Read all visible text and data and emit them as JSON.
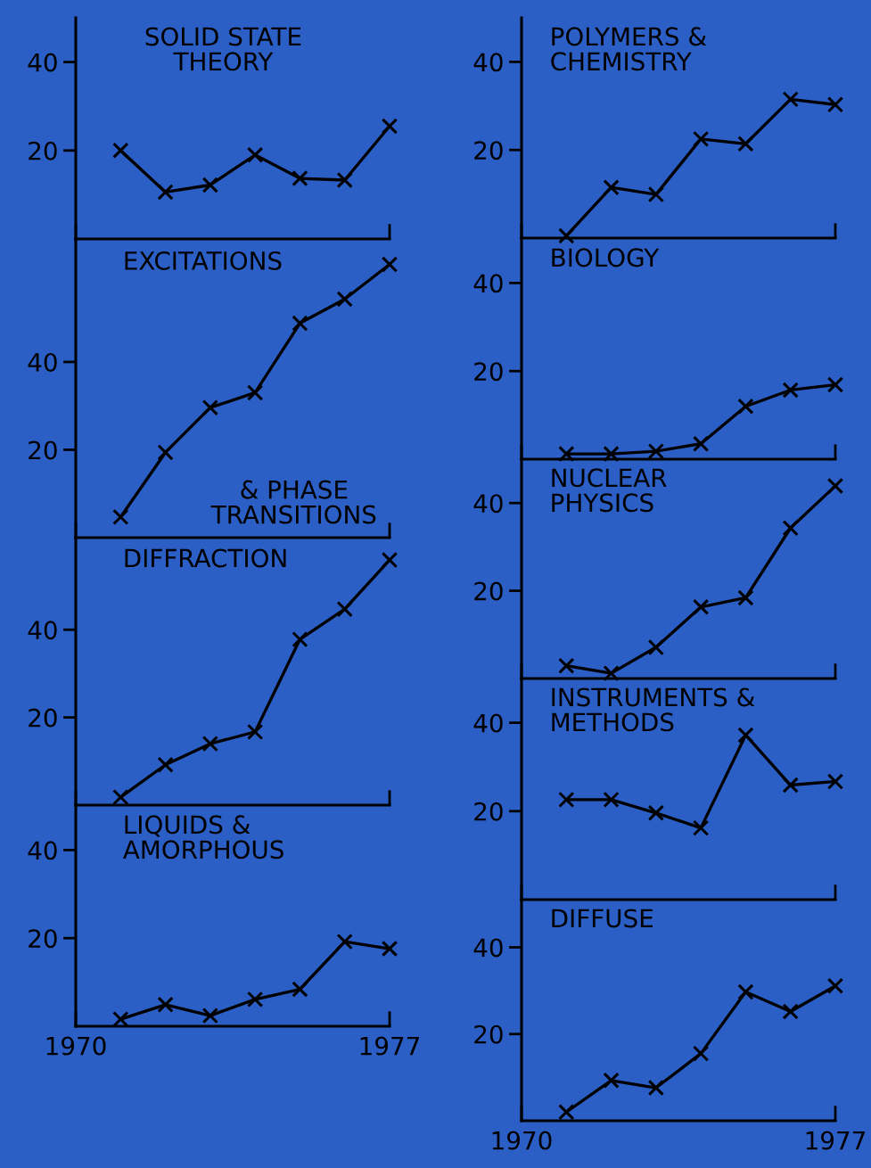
{
  "chart_data": [
    {
      "type": "line",
      "title": "SOLID STATE\nTHEORY",
      "x": [
        1971,
        1972,
        1973,
        1974,
        1975,
        1976,
        1977
      ],
      "color": "#000000",
      "marker": "cross",
      "values": [
        20,
        10.6,
        12.2,
        19,
        13.7,
        13.3,
        25.5
      ],
      "xlim": [
        1970,
        1977
      ],
      "ylim": [
        0,
        50
      ],
      "xticks": [
        1970,
        1977
      ],
      "yticks": [
        20,
        40
      ],
      "tick_labels": "y"
    },
    {
      "type": "line",
      "title": "EXCITATIONS",
      "annotations": [
        "& PHASE\nTRANSITIONS"
      ],
      "x": [
        1971,
        1972,
        1973,
        1974,
        1975,
        1976,
        1977
      ],
      "color": "#000000",
      "marker": "cross",
      "values": [
        4.7,
        19.4,
        29.6,
        33,
        48.8,
        54.3,
        62.2
      ],
      "xlim": [
        1970,
        1977
      ],
      "ylim": [
        0,
        68
      ],
      "xticks": [
        1970,
        1977
      ],
      "yticks": [
        20,
        40
      ],
      "tick_labels": "y"
    },
    {
      "type": "line",
      "title": "DIFFRACTION",
      "x": [
        1971,
        1972,
        1973,
        1974,
        1975,
        1976,
        1977
      ],
      "color": "#000000",
      "marker": "cross",
      "values": [
        1.8,
        9.2,
        14,
        16.7,
        37.8,
        44.7,
        55.9
      ],
      "xlim": [
        1970,
        1977
      ],
      "ylim": [
        0,
        61
      ],
      "xticks": [
        1970,
        1977
      ],
      "yticks": [
        20,
        40
      ],
      "tick_labels": "y"
    },
    {
      "type": "line",
      "title": "LIQUIDS &\nAMORPHOUS",
      "x": [
        1971,
        1972,
        1973,
        1974,
        1975,
        1976,
        1977
      ],
      "color": "#000000",
      "marker": "cross",
      "values": [
        1.6,
        4.9,
        2.4,
        6.1,
        8.4,
        19.2,
        17.6
      ],
      "xlim": [
        1970,
        1977
      ],
      "ylim": [
        0,
        50
      ],
      "xticks": [
        1970,
        1977
      ],
      "yticks": [
        20,
        40
      ]
    },
    {
      "type": "line",
      "title": "POLYMERS &\nCHEMISTRY",
      "x": [
        1971,
        1972,
        1973,
        1974,
        1975,
        1976,
        1977
      ],
      "color": "#000000",
      "marker": "cross",
      "values": [
        0.5,
        11.5,
        9.9,
        22.5,
        21.4,
        31.5,
        30.3
      ],
      "xlim": [
        1970,
        1977
      ],
      "ylim": [
        0,
        50
      ],
      "xticks": [
        1970,
        1977
      ],
      "yticks": [
        20,
        40
      ],
      "tick_labels": "y"
    },
    {
      "type": "line",
      "title": "BIOLOGY",
      "x": [
        1971,
        1972,
        1973,
        1974,
        1975,
        1976,
        1977
      ],
      "color": "#000000",
      "marker": "cross",
      "values": [
        1.2,
        1.2,
        1.8,
        3.5,
        12,
        15.7,
        16.9
      ],
      "xlim": [
        1970,
        1977
      ],
      "ylim": [
        0,
        50
      ],
      "xticks": [
        1970,
        1977
      ],
      "yticks": [
        20,
        40
      ],
      "tick_labels": "y"
    },
    {
      "type": "line",
      "title": "NUCLEAR\nPHYSICS",
      "x": [
        1971,
        1972,
        1973,
        1974,
        1975,
        1976,
        1977
      ],
      "color": "#000000",
      "marker": "cross",
      "values": [
        2.9,
        1.2,
        7.1,
        16.3,
        18.4,
        34.3,
        43.9
      ],
      "xlim": [
        1970,
        1977
      ],
      "ylim": [
        0,
        50
      ],
      "xticks": [
        1970,
        1977
      ],
      "yticks": [
        20,
        40
      ],
      "tick_labels": "y"
    },
    {
      "type": "line",
      "title": "INSTRUMENTS &\nMETHODS",
      "x": [
        1971,
        1972,
        1973,
        1974,
        1975,
        1976,
        1977
      ],
      "color": "#000000",
      "marker": "cross",
      "values": [
        22.6,
        22.6,
        19.6,
        16.2,
        37.2,
        25.9,
        26.7
      ],
      "xlim": [
        1970,
        1977
      ],
      "ylim": [
        0,
        50
      ],
      "xticks": [
        1970,
        1977
      ],
      "yticks": [
        20,
        40
      ],
      "tick_labels": "y"
    },
    {
      "type": "line",
      "title": "DIFFUSE",
      "x": [
        1971,
        1972,
        1973,
        1974,
        1975,
        1976,
        1977
      ],
      "color": "#000000",
      "marker": "cross",
      "values": [
        2,
        9.3,
        7.6,
        15.5,
        29.7,
        25.2,
        31.1
      ],
      "xlim": [
        1970,
        1977
      ],
      "ylim": [
        0,
        51
      ],
      "xticks": [
        1970,
        1977
      ],
      "yticks": [
        20,
        40
      ]
    }
  ]
}
